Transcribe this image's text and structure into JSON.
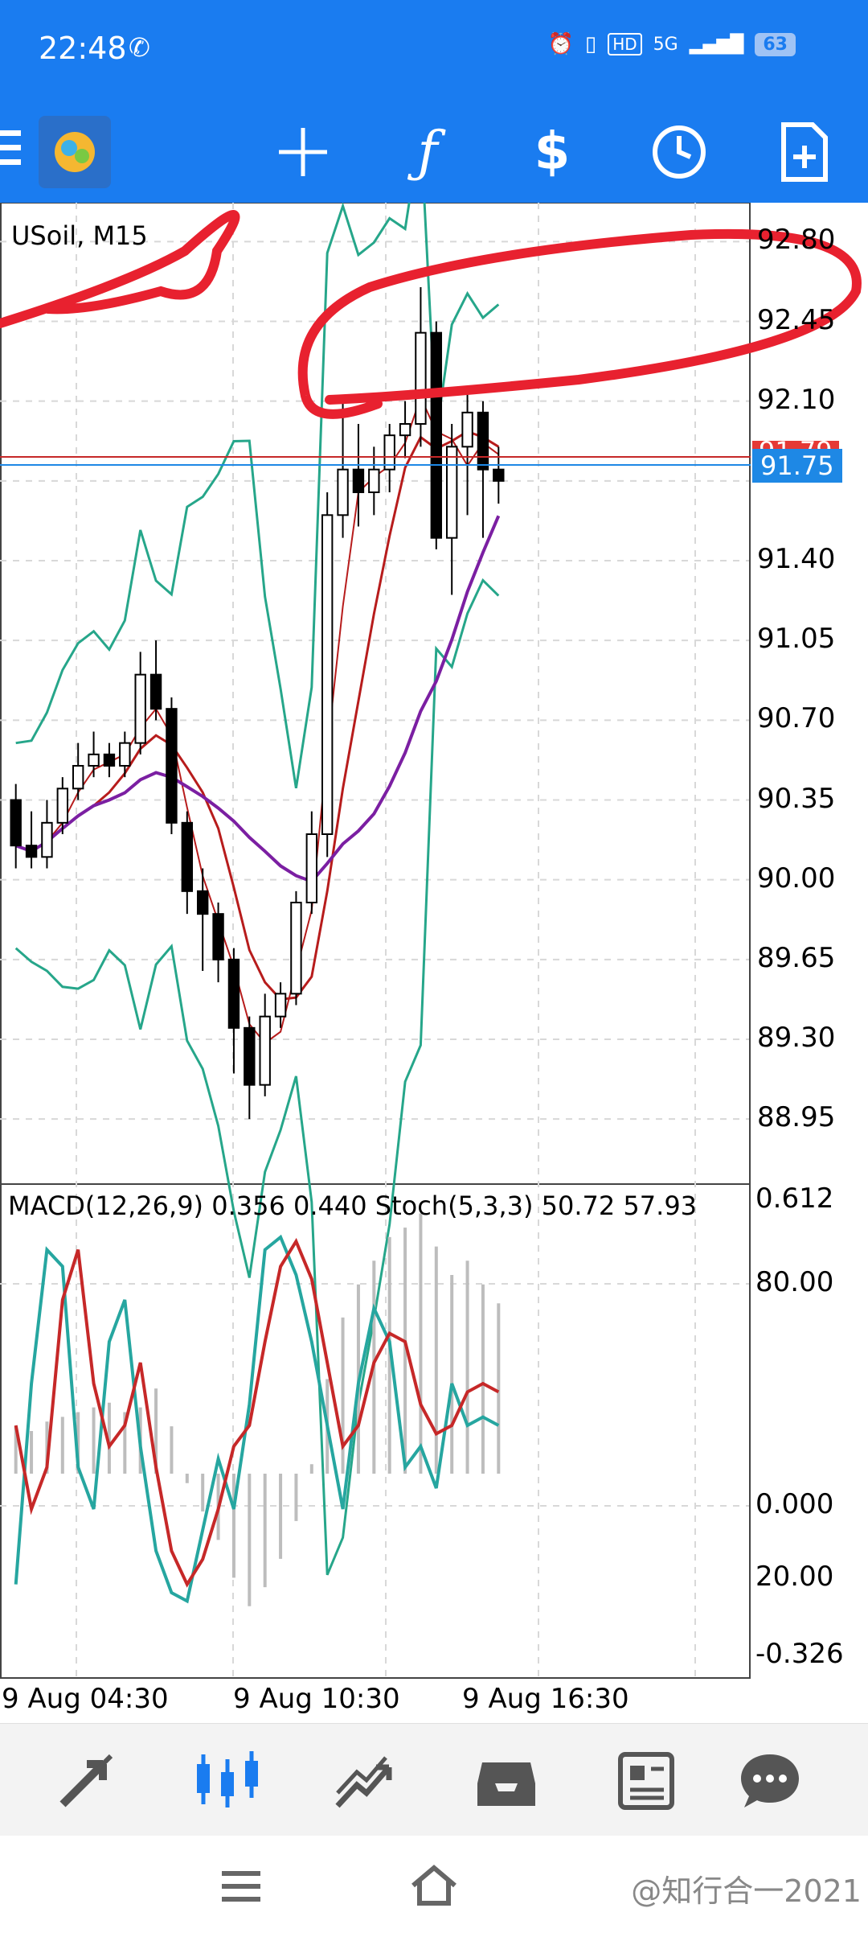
{
  "status": {
    "time": "22:48",
    "battery": "63",
    "network": "5G",
    "hd": "HD"
  },
  "toolbar": {
    "items": [
      "logo-icon",
      "crosshair-icon",
      "indicator-icon",
      "trade-icon",
      "clock-icon",
      "new-order-icon"
    ],
    "accent": "#1a7cf0"
  },
  "chart": {
    "symbol_label": "USoil, M15",
    "price_ticks": [
      "92.80",
      "92.45",
      "92.10",
      "91.75",
      "91.40",
      "91.05",
      "90.70",
      "90.35",
      "90.00",
      "89.65",
      "89.30",
      "88.95"
    ],
    "current_price": "91.75",
    "red_price_label": "91.79",
    "indicator_label": "MACD(12,26,9) 0.356 0.440 Stoch(5,3,3) 50.72 57.93",
    "sub_ticks": [
      "0.612",
      "80.00",
      "0.000",
      "20.00",
      "-0.326"
    ],
    "time_labels": [
      "9 Aug 04:30",
      "9 Aug 10:30",
      "9 Aug 16:30"
    ]
  },
  "chart_data": {
    "type": "candlestick",
    "symbol": "USoil",
    "timeframe": "M15",
    "ylim": [
      88.7,
      92.9
    ],
    "candles": [
      {
        "o": 90.35,
        "h": 90.42,
        "c": 90.15,
        "l": 90.05
      },
      {
        "o": 90.15,
        "h": 90.3,
        "c": 90.1,
        "l": 90.05
      },
      {
        "o": 90.1,
        "h": 90.35,
        "c": 90.25,
        "l": 90.05
      },
      {
        "o": 90.25,
        "h": 90.45,
        "c": 90.4,
        "l": 90.2
      },
      {
        "o": 90.4,
        "h": 90.6,
        "c": 90.5,
        "l": 90.35
      },
      {
        "o": 90.5,
        "h": 90.65,
        "c": 90.55,
        "l": 90.45
      },
      {
        "o": 90.55,
        "h": 90.6,
        "c": 90.5,
        "l": 90.45
      },
      {
        "o": 90.5,
        "h": 90.65,
        "c": 90.6,
        "l": 90.45
      },
      {
        "o": 90.6,
        "h": 91.0,
        "c": 90.9,
        "l": 90.55
      },
      {
        "o": 90.9,
        "h": 91.05,
        "c": 90.75,
        "l": 90.7
      },
      {
        "o": 90.75,
        "h": 90.8,
        "c": 90.25,
        "l": 90.2
      },
      {
        "o": 90.25,
        "h": 90.3,
        "c": 89.95,
        "l": 89.85
      },
      {
        "o": 89.95,
        "h": 90.05,
        "c": 89.85,
        "l": 89.6
      },
      {
        "o": 89.85,
        "h": 89.9,
        "c": 89.65,
        "l": 89.55
      },
      {
        "o": 89.65,
        "h": 89.7,
        "c": 89.35,
        "l": 89.15
      },
      {
        "o": 89.35,
        "h": 89.4,
        "c": 89.1,
        "l": 88.95
      },
      {
        "o": 89.1,
        "h": 89.5,
        "c": 89.4,
        "l": 89.05
      },
      {
        "o": 89.4,
        "h": 89.55,
        "c": 89.5,
        "l": 89.35
      },
      {
        "o": 89.5,
        "h": 89.95,
        "c": 89.9,
        "l": 89.45
      },
      {
        "o": 89.9,
        "h": 90.3,
        "c": 90.2,
        "l": 89.85
      },
      {
        "o": 90.2,
        "h": 91.7,
        "c": 91.6,
        "l": 90.1
      },
      {
        "o": 91.6,
        "h": 92.1,
        "c": 91.8,
        "l": 91.5
      },
      {
        "o": 91.8,
        "h": 92.0,
        "c": 91.7,
        "l": 91.55
      },
      {
        "o": 91.7,
        "h": 91.9,
        "c": 91.8,
        "l": 91.6
      },
      {
        "o": 91.8,
        "h": 92.0,
        "c": 91.95,
        "l": 91.7
      },
      {
        "o": 91.95,
        "h": 92.1,
        "c": 92.0,
        "l": 91.85
      },
      {
        "o": 92.0,
        "h": 92.6,
        "c": 92.4,
        "l": 91.9
      },
      {
        "o": 92.4,
        "h": 92.45,
        "c": 91.5,
        "l": 91.45
      },
      {
        "o": 91.5,
        "h": 92.0,
        "c": 91.9,
        "l": 91.25
      },
      {
        "o": 91.9,
        "h": 92.15,
        "c": 92.05,
        "l": 91.6
      },
      {
        "o": 92.05,
        "h": 92.1,
        "c": 91.8,
        "l": 91.5
      },
      {
        "o": 91.8,
        "h": 91.9,
        "c": 91.75,
        "l": 91.65
      }
    ],
    "macd_hist": [
      0.1,
      0.09,
      0.11,
      0.12,
      0.13,
      0.14,
      0.15,
      0.13,
      0.14,
      0.18,
      0.1,
      -0.02,
      -0.08,
      -0.14,
      -0.22,
      -0.28,
      -0.24,
      -0.18,
      -0.1,
      0.02,
      0.2,
      0.33,
      0.4,
      0.45,
      0.5,
      0.52,
      0.55,
      0.48,
      0.42,
      0.45,
      0.4,
      0.36
    ],
    "stoch_main": [
      12,
      60,
      92,
      88,
      40,
      30,
      70,
      80,
      45,
      20,
      10,
      8,
      25,
      42,
      30,
      55,
      92,
      95,
      86,
      70,
      50,
      30,
      60,
      78,
      70,
      40,
      45,
      35,
      60,
      50,
      52,
      50
    ],
    "stoch_signal": [
      50,
      30,
      40,
      80,
      92,
      60,
      45,
      50,
      65,
      40,
      20,
      12,
      18,
      30,
      45,
      50,
      70,
      88,
      94,
      85,
      65,
      45,
      50,
      65,
      72,
      70,
      55,
      48,
      50,
      58,
      60,
      58
    ]
  }
}
